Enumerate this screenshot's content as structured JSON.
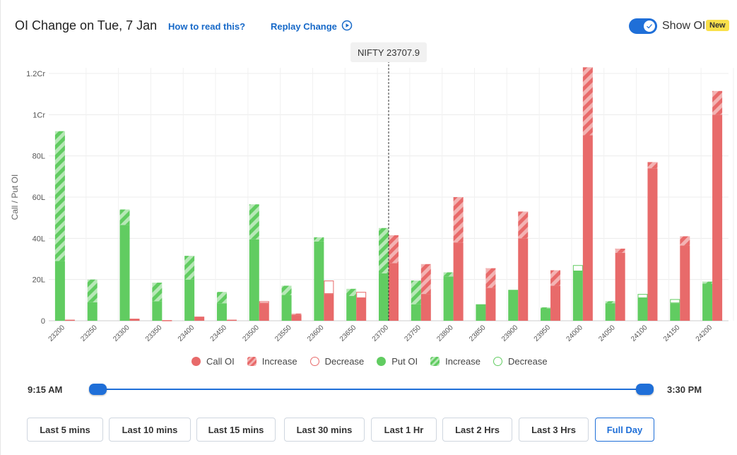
{
  "header": {
    "title": "OI Change on Tue, 7 Jan",
    "how_link": "How to read this?",
    "replay_link": "Replay Change",
    "toggle_label": "Show OI",
    "toggle_on": true,
    "badge": "New"
  },
  "colors": {
    "call": "#e86a6a",
    "call_light": "#f3b3b3",
    "put": "#61cc61",
    "put_light": "#b7e8b7",
    "accent": "#1f6fd8"
  },
  "chart_data": {
    "type": "bar",
    "ylabel": "Call / Put OI",
    "ylim": [
      0,
      12000000
    ],
    "yticks": [
      0,
      2000000,
      4000000,
      6000000,
      8000000,
      10000000,
      12000000
    ],
    "ytick_labels": [
      "0",
      "20L",
      "40L",
      "60L",
      "80L",
      "1Cr",
      "1.2Cr"
    ],
    "grid": true,
    "spot_label": "NIFTY 23707.9",
    "spot_value": 23707.9,
    "categories": [
      "23200",
      "23250",
      "23300",
      "23350",
      "23400",
      "23450",
      "23500",
      "23550",
      "23600",
      "23650",
      "23700",
      "23750",
      "23800",
      "23850",
      "23900",
      "23950",
      "24000",
      "24050",
      "24100",
      "24150",
      "24200"
    ],
    "series": [
      {
        "name": "Put OI",
        "base": [
          2900000,
          900000,
          4650000,
          950000,
          2000000,
          850000,
          3950000,
          1250000,
          3850000,
          1200000,
          2300000,
          800000,
          2150000,
          800000,
          1500000,
          600000,
          2400000,
          850000,
          1100000,
          850000,
          1800000
        ],
        "increase": [
          6300000,
          1100000,
          750000,
          900000,
          1150000,
          550000,
          1700000,
          450000,
          200000,
          350000,
          2200000,
          1150000,
          200000,
          0,
          0,
          50000,
          0,
          100000,
          0,
          0,
          100000
        ],
        "decrease": [
          0,
          0,
          0,
          0,
          0,
          0,
          0,
          0,
          0,
          0,
          0,
          0,
          0,
          0,
          0,
          0,
          300000,
          0,
          200000,
          200000,
          0
        ]
      },
      {
        "name": "Call OI",
        "base": [
          50000,
          0,
          100000,
          30000,
          200000,
          50000,
          850000,
          300000,
          1300000,
          1100000,
          2800000,
          1300000,
          3800000,
          1600000,
          4000000,
          1700000,
          9000000,
          3300000,
          7400000,
          3650000,
          10000000
        ],
        "increase": [
          0,
          0,
          0,
          0,
          0,
          0,
          0,
          50000,
          0,
          0,
          1350000,
          1450000,
          2200000,
          950000,
          1300000,
          750000,
          3300000,
          200000,
          300000,
          450000,
          1150000
        ],
        "decrease": [
          0,
          0,
          0,
          0,
          0,
          0,
          100000,
          0,
          650000,
          300000,
          0,
          0,
          0,
          0,
          0,
          0,
          0,
          0,
          0,
          0,
          0
        ]
      }
    ],
    "legend": [
      {
        "key": "call",
        "label": "Call OI"
      },
      {
        "key": "call_inc",
        "label": "Increase"
      },
      {
        "key": "call_dec",
        "label": "Decrease"
      },
      {
        "key": "put",
        "label": "Put OI"
      },
      {
        "key": "put_inc",
        "label": "Increase"
      },
      {
        "key": "put_dec",
        "label": "Decrease"
      }
    ]
  },
  "slider": {
    "start": "9:15 AM",
    "end": "3:30 PM"
  },
  "buttons": [
    {
      "label": "Last 5 mins",
      "active": false
    },
    {
      "label": "Last 10 mins",
      "active": false
    },
    {
      "label": "Last 15 mins",
      "active": false
    },
    {
      "label": "Last 30 mins",
      "active": false
    },
    {
      "label": "Last 1 Hr",
      "active": false
    },
    {
      "label": "Last 2 Hrs",
      "active": false
    },
    {
      "label": "Last 3 Hrs",
      "active": false
    },
    {
      "label": "Full Day",
      "active": true
    }
  ]
}
